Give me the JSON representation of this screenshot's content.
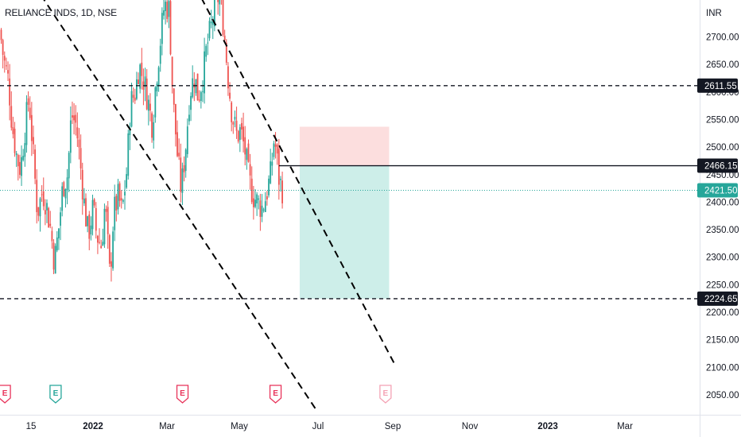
{
  "symbol_title": "RELIANCE INDS, 1D, NSE",
  "currency": "INR",
  "colors": {
    "up": "#26a69a",
    "down": "#ef5350",
    "price_line": "#26a69a",
    "badge_dark": "#131722",
    "badge_last": "#26a69a",
    "profit_zone": "#cdeee9",
    "loss_zone": "#fcdede",
    "event_earnings": "#e8335a",
    "event_dividend": "#26a69a"
  },
  "chart_data": {
    "type": "candlestick",
    "y_axis": {
      "ticks": [
        2050,
        2100,
        2150,
        2200,
        2250,
        2300,
        2350,
        2400,
        2450,
        2500,
        2550,
        2600,
        2650,
        2700
      ],
      "tick_labels": [
        "2050.00",
        "2100.00",
        "2150.00",
        "2200.00",
        "2250.00",
        "2300.00",
        "2350.00",
        "2400.00",
        "2450.00",
        "2500.00",
        "2550.00",
        "2600.00",
        "2650.00",
        "2700.00"
      ],
      "range": [
        2030,
        2730
      ],
      "unit": "INR"
    },
    "x_axis": {
      "labels": [
        "15",
        "2022",
        "Mar",
        "May",
        "Jul",
        "Sep",
        "Nov",
        "2023",
        "Mar"
      ],
      "bold_labels": [
        "2022",
        "2023"
      ]
    },
    "horizontal_levels": [
      {
        "value": 2611.55,
        "label": "2611.55",
        "style": "dashed"
      },
      {
        "value": 2224.65,
        "label": "2224.65",
        "style": "dashed"
      },
      {
        "value": 2466.15,
        "label": "2466.15",
        "style": "solid"
      }
    ],
    "last_price": {
      "value": 2421.5,
      "label": "2421.50"
    },
    "trend_lines": [
      {
        "from": {
          "date": "2021-12-29",
          "price": 2812
        },
        "to": {
          "date": "2022-08-24",
          "price": 2025
        }
      },
      {
        "from": {
          "date": "2022-05-17",
          "price": 2790
        },
        "to": {
          "date": "2022-10-28",
          "price": 2108
        }
      }
    ],
    "position_tool": {
      "start": "2022-08-11",
      "end": "2022-10-24",
      "entry": 2466.15,
      "stop": 2537,
      "target": 2224.65
    },
    "events": [
      {
        "date": "2021-12-10",
        "type": "earnings",
        "label": "E"
      },
      {
        "date": "2022-01-21",
        "type": "dividend",
        "label": "E"
      },
      {
        "date": "2022-05-06",
        "type": "earnings",
        "label": "E"
      },
      {
        "date": "2022-07-22",
        "type": "earnings",
        "label": "E"
      },
      {
        "date": "2022-10-21",
        "type": "earnings_upcoming",
        "label": "E"
      }
    ],
    "ohlc_keypoints": [
      [
        "2021-12-06",
        2712
      ],
      [
        "2021-12-09",
        2660
      ],
      [
        "2021-12-13",
        2620
      ],
      [
        "2021-12-16",
        2540
      ],
      [
        "2021-12-20",
        2480
      ],
      [
        "2021-12-23",
        2460
      ],
      [
        "2021-12-27",
        2540
      ],
      [
        "2021-12-30",
        2590
      ],
      [
        "2022-01-03",
        2470
      ],
      [
        "2022-01-06",
        2380
      ],
      [
        "2022-01-10",
        2420
      ],
      [
        "2022-01-13",
        2400
      ],
      [
        "2022-01-17",
        2350
      ],
      [
        "2022-01-20",
        2290
      ],
      [
        "2022-01-24",
        2360
      ],
      [
        "2022-01-27",
        2430
      ],
      [
        "2022-01-31",
        2450
      ],
      [
        "2022-02-03",
        2560
      ],
      [
        "2022-02-07",
        2540
      ],
      [
        "2022-02-10",
        2480
      ],
      [
        "2022-02-14",
        2390
      ],
      [
        "2022-02-17",
        2340
      ],
      [
        "2022-02-21",
        2390
      ],
      [
        "2022-02-24",
        2340
      ],
      [
        "2022-02-28",
        2320
      ],
      [
        "2022-03-03",
        2400
      ],
      [
        "2022-03-07",
        2260
      ],
      [
        "2022-03-10",
        2380
      ],
      [
        "2022-03-14",
        2410
      ],
      [
        "2022-03-17",
        2380
      ],
      [
        "2022-03-21",
        2460
      ],
      [
        "2022-03-24",
        2580
      ],
      [
        "2022-03-28",
        2600
      ],
      [
        "2022-03-31",
        2650
      ],
      [
        "2022-04-04",
        2620
      ],
      [
        "2022-04-07",
        2590
      ],
      [
        "2022-04-11",
        2540
      ],
      [
        "2022-04-14",
        2620
      ],
      [
        "2022-04-18",
        2700
      ],
      [
        "2022-04-21",
        2760
      ],
      [
        "2022-04-25",
        2750
      ],
      [
        "2022-04-28",
        2590
      ],
      [
        "2022-05-02",
        2480
      ],
      [
        "2022-05-05",
        2420
      ],
      [
        "2022-05-09",
        2510
      ],
      [
        "2022-05-12",
        2600
      ],
      [
        "2022-05-16",
        2630
      ],
      [
        "2022-05-19",
        2590
      ],
      [
        "2022-05-23",
        2630
      ],
      [
        "2022-05-26",
        2680
      ],
      [
        "2022-05-30",
        2720
      ],
      [
        "2022-06-02",
        2760
      ],
      [
        "2022-06-06",
        2780
      ],
      [
        "2022-06-09",
        2720
      ],
      [
        "2022-06-13",
        2620
      ],
      [
        "2022-06-16",
        2560
      ],
      [
        "2022-06-20",
        2520
      ],
      [
        "2022-06-23",
        2530
      ],
      [
        "2022-06-27",
        2490
      ],
      [
        "2022-06-30",
        2440
      ],
      [
        "2022-07-04",
        2410
      ],
      [
        "2022-07-07",
        2400
      ],
      [
        "2022-07-11",
        2390
      ],
      [
        "2022-07-14",
        2410
      ],
      [
        "2022-07-18",
        2450
      ],
      [
        "2022-07-21",
        2520
      ],
      [
        "2022-07-25",
        2440
      ],
      [
        "2022-07-28",
        2421.5
      ]
    ]
  }
}
